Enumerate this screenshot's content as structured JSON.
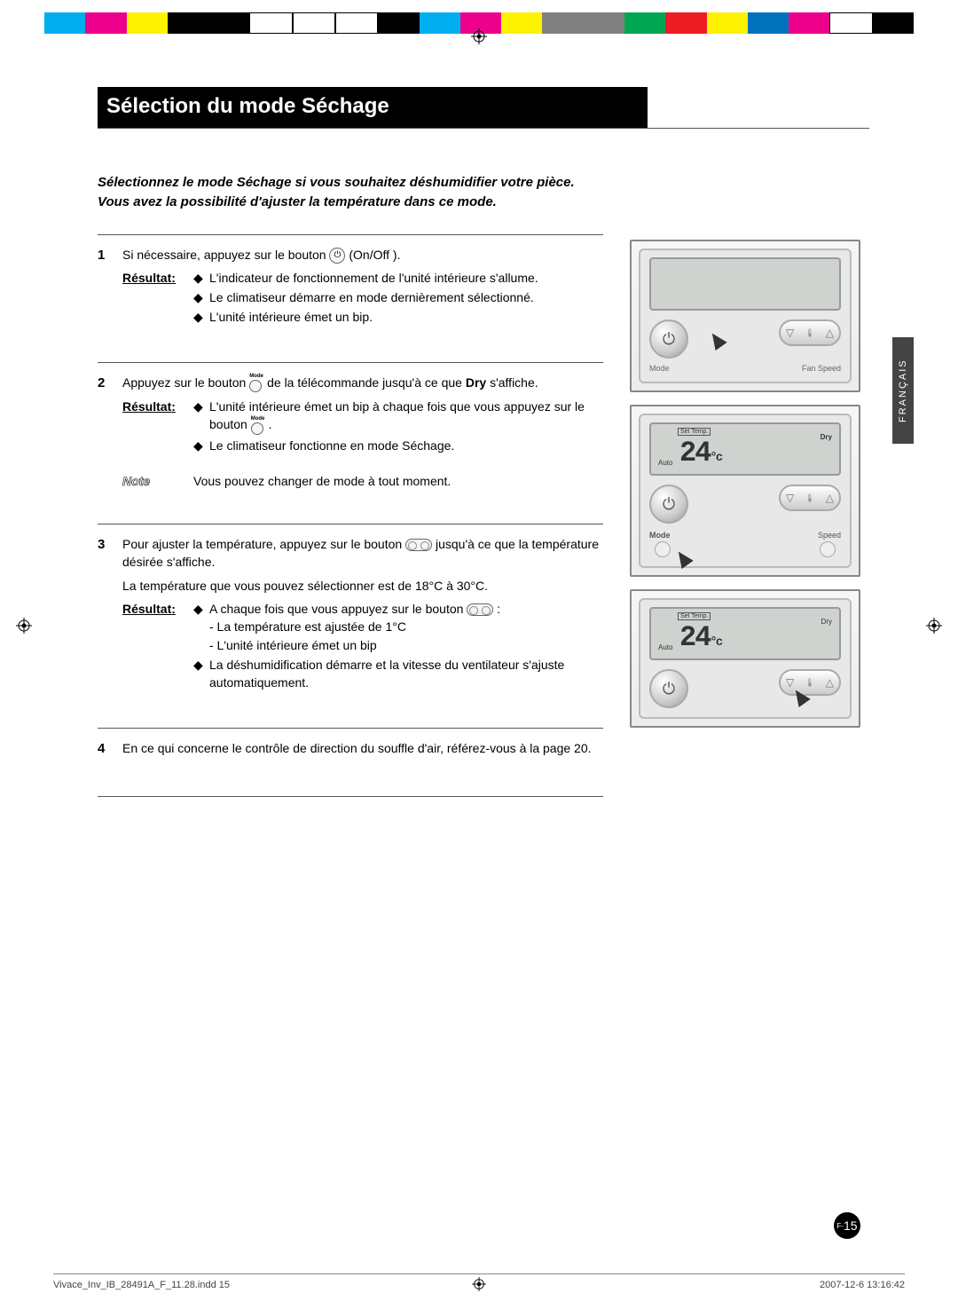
{
  "registration_bar_colors": [
    "#00aeef",
    "#ec008c",
    "#fff200",
    "#000000",
    "#000000",
    "#ffffff",
    "#ffffff",
    "#ffffff",
    "#000000",
    "#00aeef",
    "#ec008c",
    "#fff200",
    "#808080",
    "#808080",
    "#00a651",
    "#ed1c24",
    "#fff200",
    "#0072bc",
    "#ec008c",
    "#ffffff",
    "#000000"
  ],
  "page": {
    "title": "Sélection du mode Séchage",
    "intro_l1": "Sélectionnez le mode Séchage si vous souhaitez déshumidifier votre pièce.",
    "intro_l2": "Vous avez la possibilité d'ajuster la température dans ce mode.",
    "side_tab": "FRANÇAIS",
    "page_prefix": "F-",
    "page_number": "15"
  },
  "labels": {
    "result": "Résultat",
    "note": "Note",
    "mode": "Mode",
    "fan_speed": "Fan Speed",
    "set_temp": "Set Temp.",
    "dry": "Dry",
    "auto": "Auto",
    "speed": "Speed"
  },
  "steps": [
    {
      "num": "1",
      "text_a": "Si nécessaire, appuyez sur le bouton ",
      "text_b": " (On/Off ).",
      "result": [
        "L'indicateur de fonctionnement de l'unité intérieure s'allume.",
        "Le climatiseur démarre en mode dernièrement sélectionné.",
        "L'unité intérieure émet un bip."
      ]
    },
    {
      "num": "2",
      "text_a": "Appuyez sur le bouton ",
      "text_b": " de la télécommande jusqu'à ce que ",
      "text_bold": "Dry",
      "text_c": " s'affiche.",
      "result": [
        "L'unité intérieure émet un bip à chaque fois que vous appuyez sur le bouton ",
        "Le climatiseur fonctionne en mode Séchage."
      ],
      "note": "Vous pouvez changer de mode à tout moment."
    },
    {
      "num": "3",
      "text_a": "Pour ajuster la température, appuyez sur le bouton ",
      "text_b": " jusqu'à ce que la température désirée s'affiche.",
      "text_l2": "La température que vous pouvez sélectionner est de 18°C à 30°C.",
      "result": [
        "A chaque fois que vous appuyez sur le bouton ",
        "La déshumidification démarre et la vitesse du ventilateur s'ajuste automatiquement."
      ],
      "sublines": [
        "- La température est ajustée de 1°C",
        "- L'unité intérieure émet un bip"
      ]
    },
    {
      "num": "4",
      "text": "En ce qui concerne le contrôle de direction du souffle d'air, référez-vous à la page 20."
    }
  ],
  "lcd": {
    "temp": "24",
    "unit": "°c"
  },
  "footer": {
    "file": "Vivace_Inv_IB_28491A_F_11.28.indd   15",
    "date": "2007-12-6   13:16:42"
  }
}
